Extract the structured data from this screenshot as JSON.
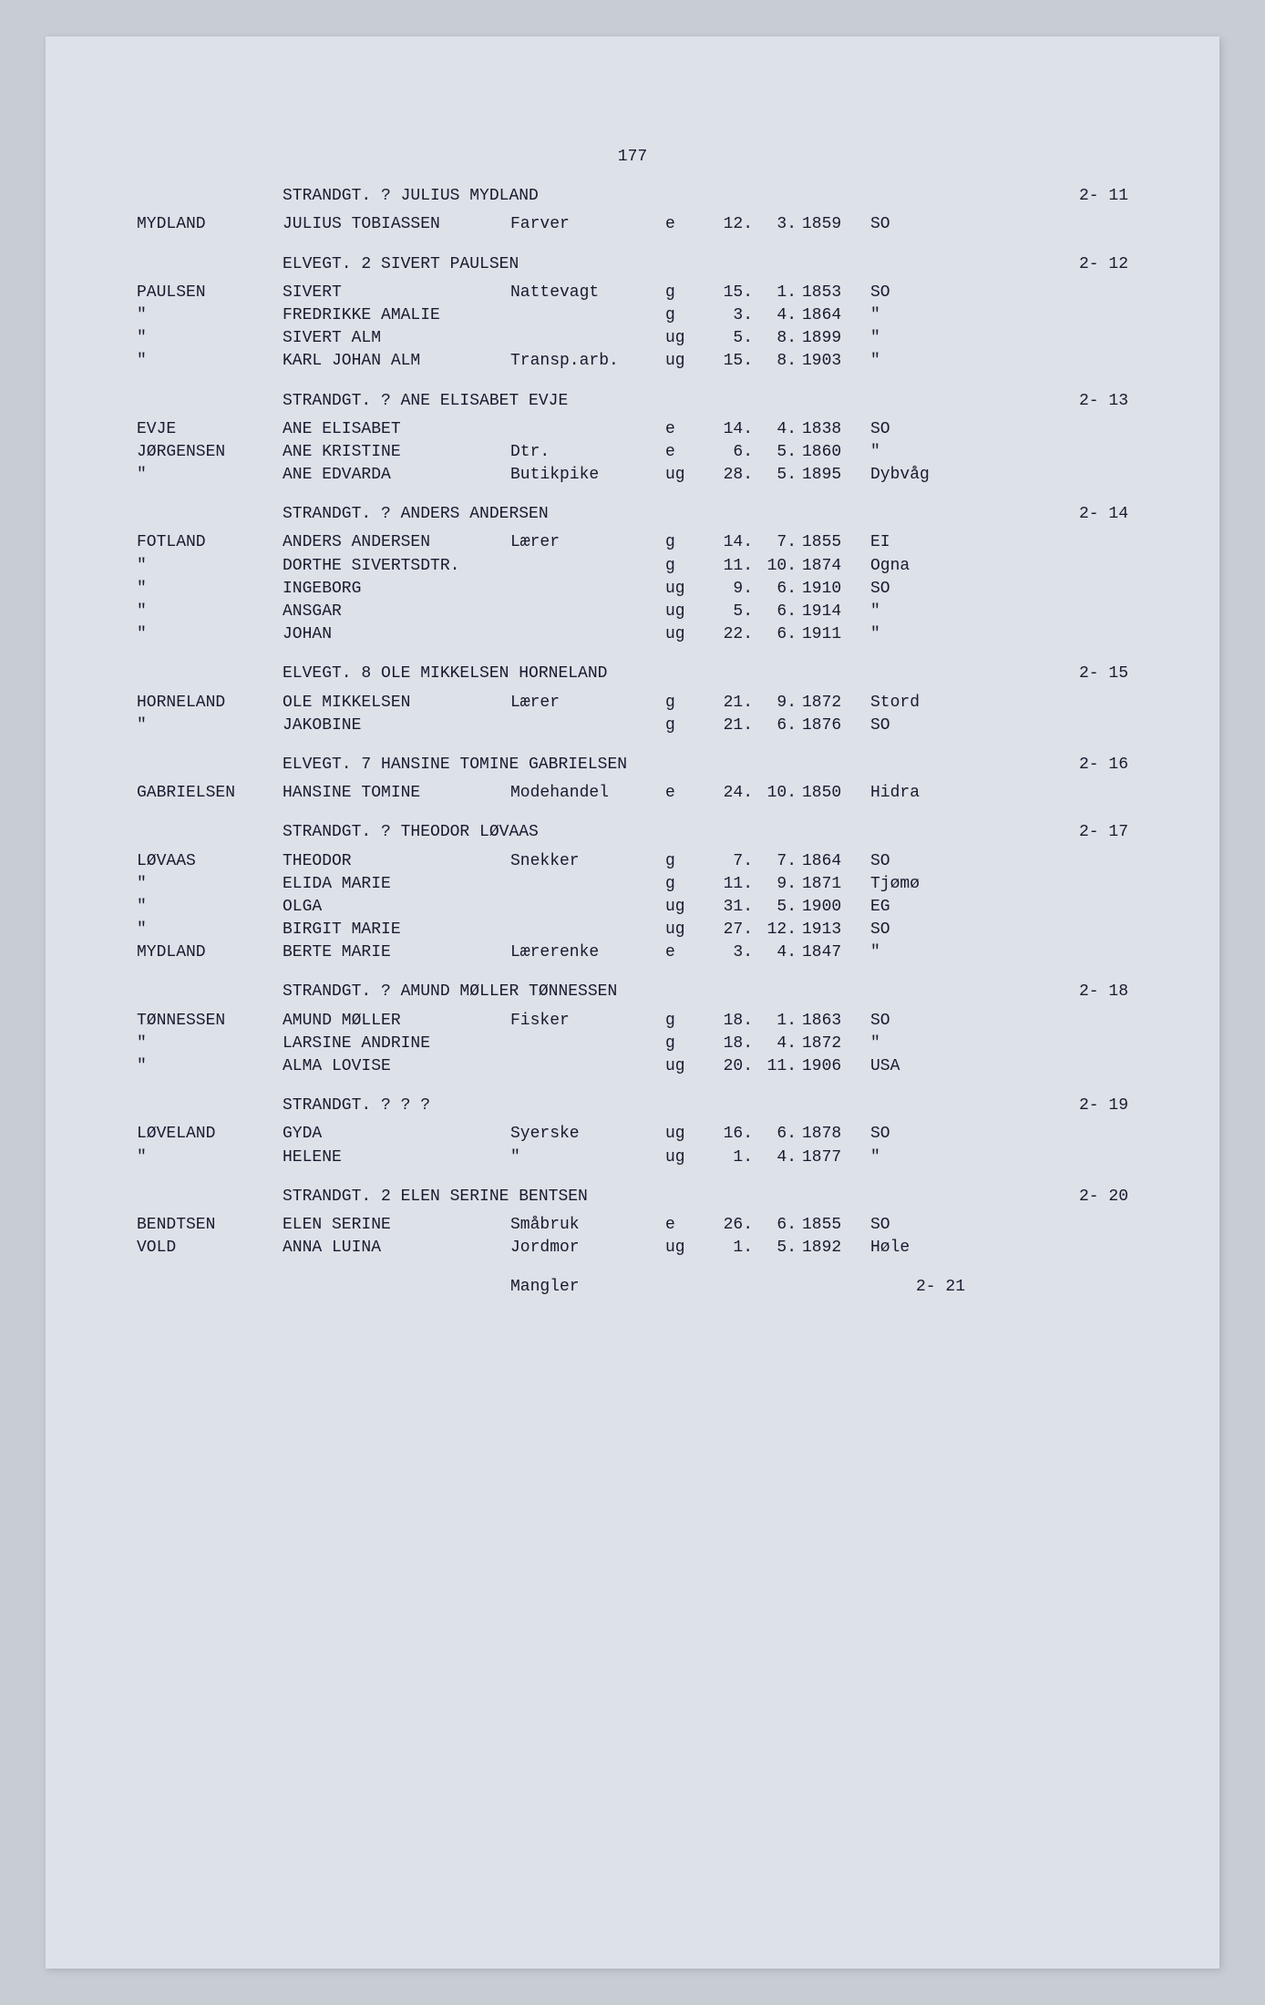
{
  "page_number": "177",
  "font": {
    "family": "Courier New",
    "size_pt": 13,
    "color": "#1a1a2e"
  },
  "colors": {
    "page_bg": "#dde1e8",
    "outer_bg": "#c8cdd4"
  },
  "blocks": [
    {
      "header": {
        "address": "STRANDGT. ?   JULIUS MYDLAND",
        "ref": "2- 11"
      },
      "rows": [
        {
          "surname": "MYDLAND",
          "firstname": "JULIUS TOBIASSEN",
          "occupation": "Farver",
          "status": "e",
          "day": "12.",
          "month": "3.",
          "year": "1859",
          "place": "SO"
        }
      ]
    },
    {
      "header": {
        "address": "ELVEGT. 2   SIVERT PAULSEN",
        "ref": "2- 12"
      },
      "rows": [
        {
          "surname": "PAULSEN",
          "firstname": "SIVERT",
          "occupation": "Nattevagt",
          "status": "g",
          "day": "15.",
          "month": "1.",
          "year": "1853",
          "place": "SO"
        },
        {
          "surname": "\"",
          "firstname": "FREDRIKKE AMALIE",
          "occupation": "",
          "status": "g",
          "day": "3.",
          "month": "4.",
          "year": "1864",
          "place": "\""
        },
        {
          "surname": "\"",
          "firstname": "SIVERT ALM",
          "occupation": "",
          "status": "ug",
          "day": "5.",
          "month": "8.",
          "year": "1899",
          "place": "\""
        },
        {
          "surname": "\"",
          "firstname": "KARL JOHAN ALM",
          "occupation": "Transp.arb.",
          "status": "ug",
          "day": "15.",
          "month": "8.",
          "year": "1903",
          "place": "\""
        }
      ]
    },
    {
      "header": {
        "address": "STRANDGT. ?   ANE ELISABET EVJE",
        "ref": "2- 13"
      },
      "rows": [
        {
          "surname": "EVJE",
          "firstname": "ANE ELISABET",
          "occupation": "",
          "status": "e",
          "day": "14.",
          "month": "4.",
          "year": "1838",
          "place": "SO"
        },
        {
          "surname": "JØRGENSEN",
          "firstname": "ANE KRISTINE",
          "occupation": "Dtr.",
          "status": "e",
          "day": "6.",
          "month": "5.",
          "year": "1860",
          "place": "\""
        },
        {
          "surname": "\"",
          "firstname": "ANE EDVARDA",
          "occupation": "Butikpike",
          "status": "ug",
          "day": "28.",
          "month": "5.",
          "year": "1895",
          "place": "Dybvåg"
        }
      ]
    },
    {
      "header": {
        "address": "STRANDGT. ?   ANDERS ANDERSEN",
        "ref": "2- 14"
      },
      "rows": [
        {
          "surname": "FOTLAND",
          "firstname": "ANDERS ANDERSEN",
          "occupation": "Lærer",
          "status": "g",
          "day": "14.",
          "month": "7.",
          "year": "1855",
          "place": "EI"
        },
        {
          "surname": "\"",
          "firstname": "DORTHE SIVERTSDTR.",
          "occupation": "",
          "status": "g",
          "day": "11.",
          "month": "10.",
          "year": "1874",
          "place": "Ogna"
        },
        {
          "surname": "\"",
          "firstname": "INGEBORG",
          "occupation": "",
          "status": "ug",
          "day": "9.",
          "month": "6.",
          "year": "1910",
          "place": "SO"
        },
        {
          "surname": "\"",
          "firstname": "ANSGAR",
          "occupation": "",
          "status": "ug",
          "day": "5.",
          "month": "6.",
          "year": "1914",
          "place": "\""
        },
        {
          "surname": "\"",
          "firstname": "JOHAN",
          "occupation": "",
          "status": "ug",
          "day": "22.",
          "month": "6.",
          "year": "1911",
          "place": "\""
        }
      ]
    },
    {
      "header": {
        "address": "ELVEGT. 8   OLE MIKKELSEN HORNELAND",
        "ref": "2- 15"
      },
      "rows": [
        {
          "surname": "HORNELAND",
          "firstname": "OLE MIKKELSEN",
          "occupation": "Lærer",
          "status": "g",
          "day": "21.",
          "month": "9.",
          "year": "1872",
          "place": "Stord"
        },
        {
          "surname": "\"",
          "firstname": "JAKOBINE",
          "occupation": "",
          "status": "g",
          "day": "21.",
          "month": "6.",
          "year": "1876",
          "place": "SO"
        }
      ]
    },
    {
      "header": {
        "address": "ELVEGT. 7   HANSINE TOMINE GABRIELSEN",
        "ref": "2- 16"
      },
      "rows": [
        {
          "surname": "GABRIELSEN",
          "firstname": "HANSINE TOMINE",
          "occupation": "Modehandel",
          "status": "e",
          "day": "24.",
          "month": "10.",
          "year": "1850",
          "place": "Hidra"
        }
      ]
    },
    {
      "header": {
        "address": "STRANDGT. ?   THEODOR LØVAAS",
        "ref": "2- 17"
      },
      "rows": [
        {
          "surname": "LØVAAS",
          "firstname": "THEODOR",
          "occupation": "Snekker",
          "status": "g",
          "day": "7.",
          "month": "7.",
          "year": "1864",
          "place": "SO"
        },
        {
          "surname": "\"",
          "firstname": "ELIDA MARIE",
          "occupation": "",
          "status": "g",
          "day": "11.",
          "month": "9.",
          "year": "1871",
          "place": "Tjømø"
        },
        {
          "surname": "\"",
          "firstname": "OLGA",
          "occupation": "",
          "status": "ug",
          "day": "31.",
          "month": "5.",
          "year": "1900",
          "place": "EG"
        },
        {
          "surname": "\"",
          "firstname": "BIRGIT MARIE",
          "occupation": "",
          "status": "ug",
          "day": "27.",
          "month": "12.",
          "year": "1913",
          "place": "SO"
        },
        {
          "surname": "MYDLAND",
          "firstname": "BERTE MARIE",
          "occupation": "Lærerenke",
          "status": "e",
          "day": "3.",
          "month": "4.",
          "year": "1847",
          "place": "\""
        }
      ]
    },
    {
      "header": {
        "address": "STRANDGT. ?   AMUND MØLLER TØNNESSEN",
        "ref": "2- 18"
      },
      "rows": [
        {
          "surname": "TØNNESSEN",
          "firstname": "AMUND MØLLER",
          "occupation": "Fisker",
          "status": "g",
          "day": "18.",
          "month": "1.",
          "year": "1863",
          "place": "SO"
        },
        {
          "surname": "\"",
          "firstname": "LARSINE ANDRINE",
          "occupation": "",
          "status": "g",
          "day": "18.",
          "month": "4.",
          "year": "1872",
          "place": "\""
        },
        {
          "surname": "\"",
          "firstname": "ALMA LOVISE",
          "occupation": "",
          "status": "ug",
          "day": "20.",
          "month": "11.",
          "year": "1906",
          "place": "USA"
        }
      ]
    },
    {
      "header": {
        "address": "STRANDGT. ?   ? ?",
        "ref": "2- 19"
      },
      "rows": [
        {
          "surname": "LØVELAND",
          "firstname": "GYDA",
          "occupation": "Syerske",
          "status": "ug",
          "day": "16.",
          "month": "6.",
          "year": "1878",
          "place": "SO"
        },
        {
          "surname": "\"",
          "firstname": "HELENE",
          "occupation": "\"",
          "status": "ug",
          "day": "1.",
          "month": "4.",
          "year": "1877",
          "place": "\""
        }
      ]
    },
    {
      "header": {
        "address": "STRANDGT. 2   ELEN SERINE BENTSEN",
        "ref": "2- 20"
      },
      "rows": [
        {
          "surname": "BENDTSEN",
          "firstname": "ELEN SERINE",
          "occupation": "Småbruk",
          "status": "e",
          "day": "26.",
          "month": "6.",
          "year": "1855",
          "place": "SO"
        },
        {
          "surname": "VOLD",
          "firstname": "ANNA LUINA",
          "occupation": "Jordmor",
          "status": "ug",
          "day": "1.",
          "month": "5.",
          "year": "1892",
          "place": "Høle"
        }
      ]
    }
  ],
  "trailer": {
    "text": "Mangler",
    "ref": "2- 21"
  }
}
